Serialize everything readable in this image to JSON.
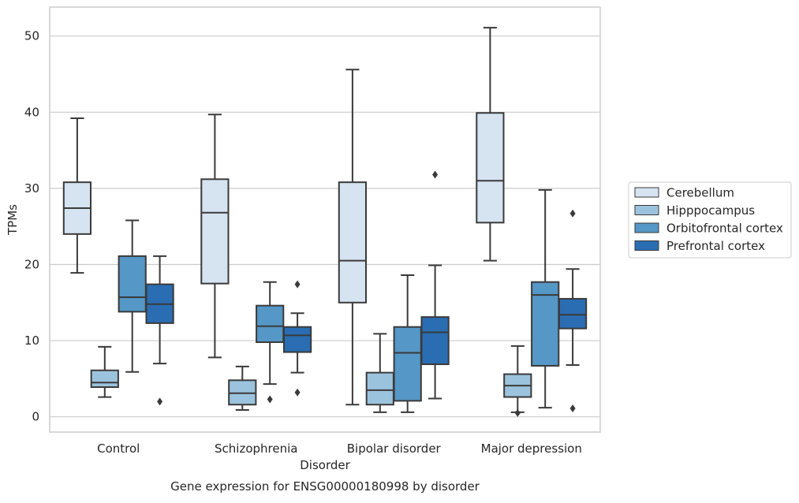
{
  "chart_data": {
    "type": "boxplot",
    "xlabel": "Disorder",
    "ylabel": "TPMs",
    "caption": "Gene expression for ENSG00000180998 by disorder",
    "ylim": [
      -2,
      53.8
    ],
    "yticks": [
      0,
      10,
      20,
      30,
      40,
      50
    ],
    "grid": "horizontal",
    "legend_position": "right",
    "categories": [
      "Control",
      "Schizophrenia",
      "Bipolar disorder",
      "Major depression"
    ],
    "series": [
      {
        "name": "Cerebellum",
        "color": "#d6e3f1",
        "boxes": [
          {
            "whisker_low": 18.9,
            "q1": 24.0,
            "median": 27.4,
            "q3": 30.8,
            "whisker_high": 39.2,
            "outliers": []
          },
          {
            "whisker_low": 7.8,
            "q1": 17.5,
            "median": 26.8,
            "q3": 31.2,
            "whisker_high": 39.7,
            "outliers": []
          },
          {
            "whisker_low": 1.6,
            "q1": 15.0,
            "median": 20.5,
            "q3": 30.8,
            "whisker_high": 45.6,
            "outliers": []
          },
          {
            "whisker_low": 20.5,
            "q1": 25.5,
            "median": 31.0,
            "q3": 39.9,
            "whisker_high": 51.1,
            "outliers": []
          }
        ]
      },
      {
        "name": "Hipppocampus",
        "color": "#9cc3dd",
        "boxes": [
          {
            "whisker_low": 2.6,
            "q1": 3.9,
            "median": 4.5,
            "q3": 6.1,
            "whisker_high": 9.2,
            "outliers": []
          },
          {
            "whisker_low": 0.9,
            "q1": 1.6,
            "median": 3.1,
            "q3": 4.8,
            "whisker_high": 6.6,
            "outliers": []
          },
          {
            "whisker_low": 0.6,
            "q1": 1.6,
            "median": 3.5,
            "q3": 5.8,
            "whisker_high": 10.9,
            "outliers": []
          },
          {
            "whisker_low": 0.6,
            "q1": 2.6,
            "median": 4.1,
            "q3": 5.6,
            "whisker_high": 9.3,
            "outliers": [
              0.5
            ]
          }
        ]
      },
      {
        "name": "Orbitofrontal cortex",
        "color": "#5597c6",
        "boxes": [
          {
            "whisker_low": 5.9,
            "q1": 13.8,
            "median": 15.7,
            "q3": 21.1,
            "whisker_high": 25.8,
            "outliers": []
          },
          {
            "whisker_low": 4.3,
            "q1": 9.8,
            "median": 11.9,
            "q3": 14.6,
            "whisker_high": 17.7,
            "outliers": [
              2.3
            ]
          },
          {
            "whisker_low": 0.6,
            "q1": 2.1,
            "median": 8.4,
            "q3": 11.8,
            "whisker_high": 18.6,
            "outliers": []
          },
          {
            "whisker_low": 1.2,
            "q1": 6.7,
            "median": 16.0,
            "q3": 17.7,
            "whisker_high": 29.8,
            "outliers": []
          }
        ]
      },
      {
        "name": "Prefrontal cortex",
        "color": "#2a6db2",
        "boxes": [
          {
            "whisker_low": 7.0,
            "q1": 12.3,
            "median": 14.8,
            "q3": 17.4,
            "whisker_high": 21.1,
            "outliers": [
              2.0
            ]
          },
          {
            "whisker_low": 5.8,
            "q1": 8.5,
            "median": 10.7,
            "q3": 11.8,
            "whisker_high": 13.6,
            "outliers": [
              3.2,
              17.4
            ]
          },
          {
            "whisker_low": 2.4,
            "q1": 6.9,
            "median": 11.1,
            "q3": 13.1,
            "whisker_high": 19.9,
            "outliers": [
              31.8
            ]
          },
          {
            "whisker_low": 6.8,
            "q1": 11.6,
            "median": 13.4,
            "q3": 15.5,
            "whisker_high": 19.4,
            "outliers": [
              1.1,
              26.7
            ]
          }
        ]
      }
    ]
  }
}
